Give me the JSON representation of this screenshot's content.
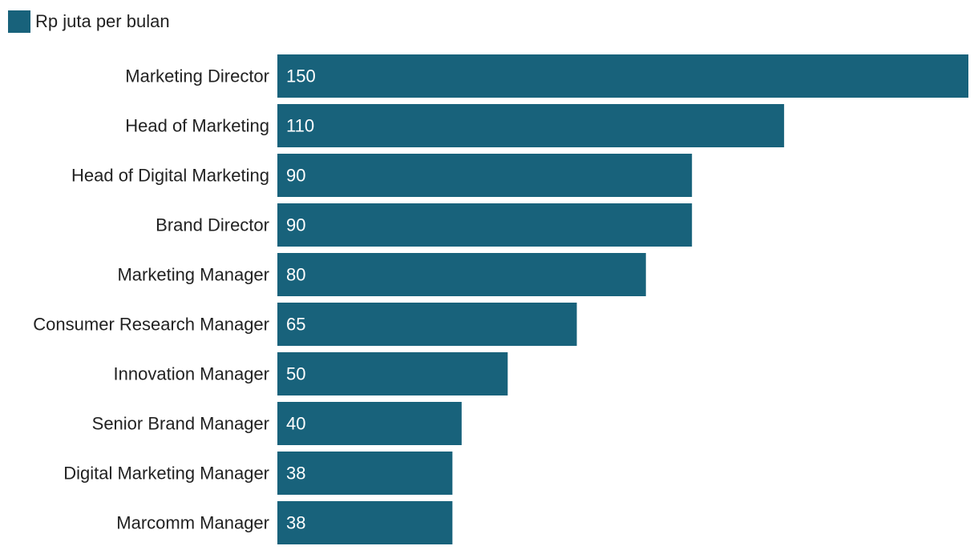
{
  "chart_data": {
    "type": "bar",
    "orientation": "horizontal",
    "categories": [
      "Marketing Director",
      "Head of Marketing",
      "Head of Digital Marketing",
      "Brand Director",
      "Marketing Manager",
      "Consumer Research Manager",
      "Innovation Manager",
      "Senior Brand Manager",
      "Digital Marketing Manager",
      "Marcomm Manager"
    ],
    "series": [
      {
        "name": "Rp juta per bulan",
        "values": [
          150,
          110,
          90,
          90,
          80,
          65,
          50,
          40,
          38,
          38
        ]
      }
    ],
    "xlim": [
      0,
      150
    ],
    "data_labels": "inside-start",
    "grid": false,
    "legend": "top-left",
    "bar_color": "#18627b",
    "label_color": "#ffffff",
    "text_color": "#222222"
  }
}
